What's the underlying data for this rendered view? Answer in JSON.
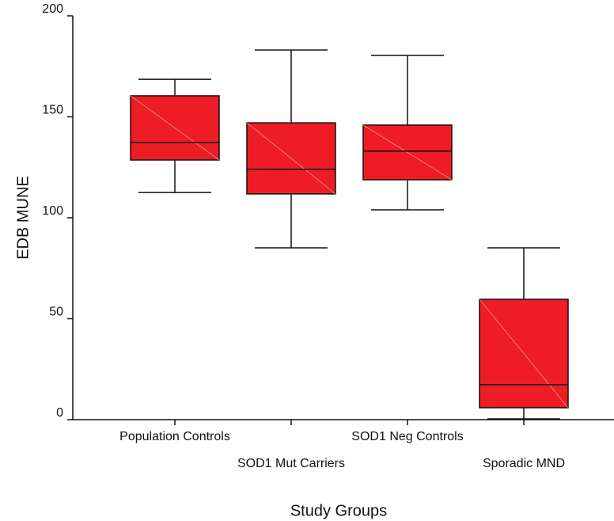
{
  "chart_data": {
    "type": "box",
    "x_label": "Study Groups",
    "y_label": "EDB MUNE",
    "categories": [
      "Population Controls",
      "SOD1 Mut Carriers",
      "SOD1 Neg Controls",
      "Sporadic MND"
    ],
    "boxes": [
      {
        "whislo": 112.5,
        "q1": 128.6,
        "med": 137.3,
        "q3": 160.4,
        "whishi": 168.6
      },
      {
        "whislo": 85.1,
        "q1": 111.8,
        "med": 124,
        "q3": 147,
        "whishi": 183.1
      },
      {
        "whislo": 103.9,
        "q1": 118.8,
        "med": 133,
        "q3": 145.9,
        "whishi": 180.4
      },
      {
        "whislo": 0.4,
        "q1": 5.9,
        "med": 17.3,
        "q3": 59.6,
        "whishi": 85.1
      }
    ],
    "color": "#ee1c25",
    "ylim": [
      0,
      200
    ],
    "yticks": [
      0,
      50,
      100,
      150,
      200
    ]
  }
}
